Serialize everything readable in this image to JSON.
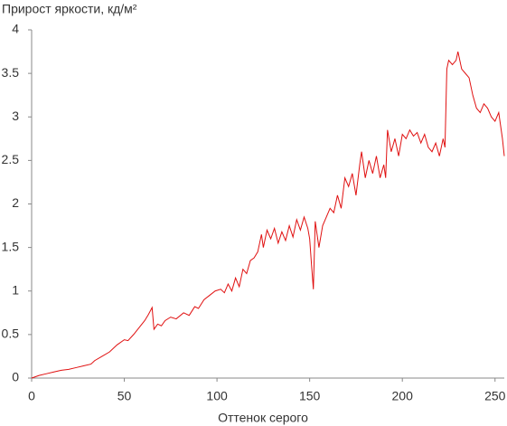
{
  "chart_data": {
    "type": "line",
    "y_label": "Прирост яркости, кд/м²",
    "x_label": "Оттенок серого",
    "color": "#e01010",
    "xlim": [
      0,
      255
    ],
    "ylim": [
      0,
      4
    ],
    "xticks": [
      0,
      50,
      100,
      150,
      200,
      250
    ],
    "yticks": [
      0,
      0.5,
      1,
      1.5,
      2,
      2.5,
      3,
      3.5,
      4
    ],
    "x": [
      0,
      4,
      8,
      12,
      16,
      20,
      24,
      28,
      32,
      34,
      38,
      42,
      46,
      50,
      52,
      55,
      58,
      61,
      63,
      65,
      66,
      68,
      70,
      72,
      75,
      78,
      82,
      85,
      88,
      90,
      93,
      96,
      99,
      102,
      104,
      106,
      108,
      110,
      112,
      114,
      116,
      118,
      120,
      122,
      124,
      125,
      127,
      129,
      131,
      133,
      135,
      137,
      139,
      141,
      143,
      145,
      147,
      149,
      150,
      151,
      152,
      153,
      155,
      157,
      159,
      161,
      163,
      165,
      167,
      169,
      171,
      173,
      175,
      177,
      178,
      180,
      182,
      184,
      186,
      188,
      190,
      191,
      192,
      194,
      196,
      198,
      200,
      202,
      204,
      206,
      208,
      210,
      212,
      214,
      216,
      218,
      220,
      222,
      223,
      224,
      225,
      227,
      229,
      230,
      232,
      234,
      236,
      238,
      240,
      242,
      244,
      246,
      248,
      250,
      252,
      253,
      254,
      255
    ],
    "values": [
      0,
      0.03,
      0.05,
      0.07,
      0.09,
      0.1,
      0.12,
      0.14,
      0.16,
      0.2,
      0.25,
      0.3,
      0.38,
      0.44,
      0.43,
      0.5,
      0.58,
      0.66,
      0.73,
      0.81,
      0.56,
      0.62,
      0.6,
      0.66,
      0.7,
      0.68,
      0.75,
      0.72,
      0.82,
      0.8,
      0.9,
      0.95,
      1.0,
      1.02,
      0.98,
      1.08,
      1.0,
      1.15,
      1.05,
      1.25,
      1.2,
      1.35,
      1.38,
      1.45,
      1.65,
      1.5,
      1.7,
      1.6,
      1.72,
      1.55,
      1.68,
      1.58,
      1.75,
      1.62,
      1.82,
      1.7,
      1.85,
      1.72,
      1.6,
      1.3,
      1.02,
      1.8,
      1.5,
      1.75,
      1.85,
      1.95,
      1.9,
      2.1,
      1.95,
      2.3,
      2.2,
      2.35,
      2.1,
      2.45,
      2.6,
      2.3,
      2.5,
      2.35,
      2.55,
      2.3,
      2.45,
      2.3,
      2.85,
      2.6,
      2.75,
      2.55,
      2.8,
      2.75,
      2.85,
      2.78,
      2.82,
      2.7,
      2.8,
      2.65,
      2.6,
      2.7,
      2.55,
      2.75,
      2.65,
      3.55,
      3.65,
      3.6,
      3.65,
      3.75,
      3.55,
      3.5,
      3.45,
      3.25,
      3.1,
      3.05,
      3.15,
      3.1,
      3.0,
      2.95,
      3.05,
      2.9,
      2.75,
      2.55
    ]
  }
}
